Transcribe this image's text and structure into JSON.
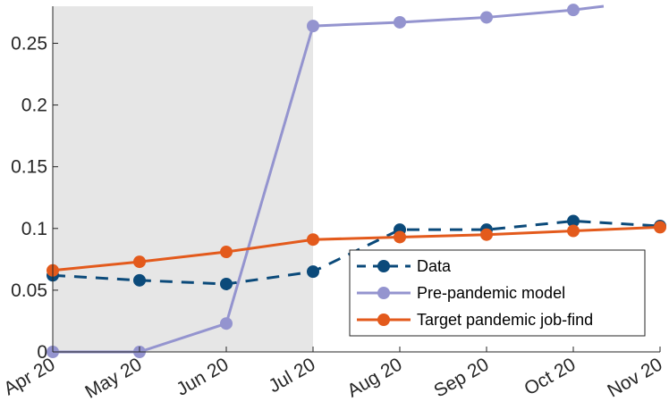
{
  "chart_data": {
    "type": "line",
    "title": "",
    "xlabel": "",
    "ylabel": "",
    "categories": [
      "Apr 20",
      "May 20",
      "Jun 20",
      "Jul 20",
      "Aug 20",
      "Sep 20",
      "Oct 20",
      "Nov 20"
    ],
    "ylim": [
      0,
      0.28
    ],
    "xlim": [
      0,
      7
    ],
    "yticks": [
      0,
      0.05,
      0.1,
      0.15,
      0.2,
      0.25
    ],
    "ytick_labels": [
      "0",
      "0.05",
      "0.1",
      "0.15",
      "0.2",
      "0.25"
    ],
    "shaded_region": {
      "x_start": 0,
      "x_end": 3,
      "color": "#e6e6e6"
    },
    "legend_position": "bottom-right",
    "series": [
      {
        "name": "Data",
        "style": "dashed",
        "color": "#0b4a7a",
        "x": [
          0,
          1,
          2,
          3,
          4,
          5,
          6,
          7
        ],
        "values": [
          0.062,
          0.058,
          0.055,
          0.065,
          0.099,
          0.099,
          0.106,
          0.102
        ]
      },
      {
        "name": "Pre-pandemic model",
        "style": "solid",
        "color": "#9494cf",
        "x": [
          0,
          1,
          2,
          3,
          4,
          5,
          6,
          6.35
        ],
        "values": [
          0.0,
          0.0,
          0.023,
          0.264,
          0.267,
          0.271,
          0.277,
          0.28
        ],
        "marker_count": 7
      },
      {
        "name": "Target pandemic job-find",
        "style": "solid",
        "color": "#e35a1c",
        "x": [
          0,
          1,
          2,
          3,
          4,
          5,
          6,
          7
        ],
        "values": [
          0.066,
          0.073,
          0.081,
          0.091,
          0.093,
          0.095,
          0.098,
          0.101
        ]
      }
    ]
  }
}
